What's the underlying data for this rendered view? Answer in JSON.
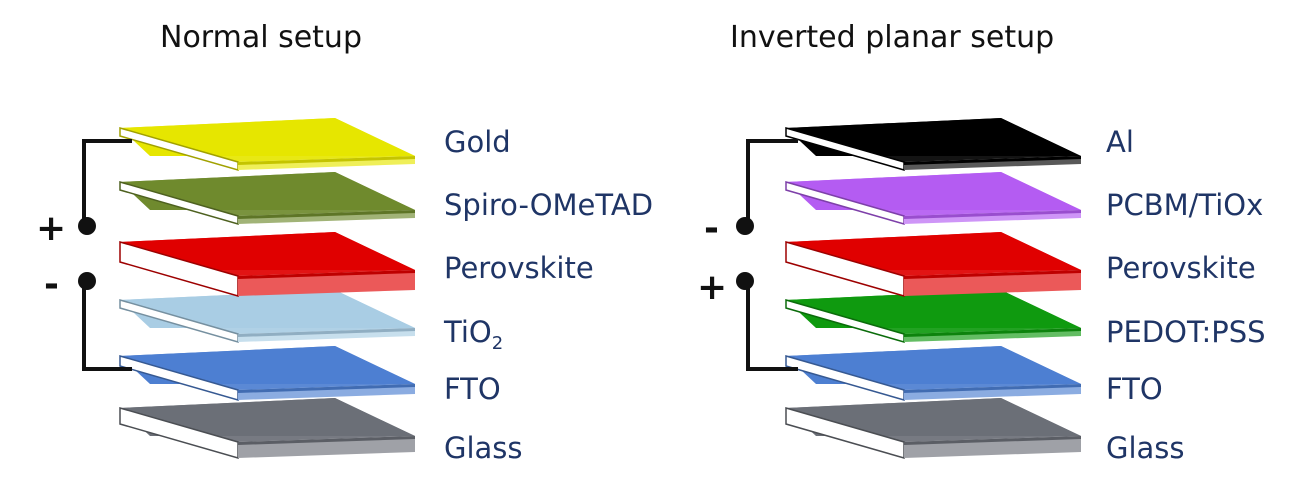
{
  "panels": [
    {
      "title": "Normal setup",
      "layers": [
        {
          "label": "Gold",
          "color": "#e6e600"
        },
        {
          "label": "Spiro-OMeTAD",
          "color": "#6f8a2e"
        },
        {
          "label": "Perovskite",
          "color": "#e00000"
        },
        {
          "label": "TiO",
          "subscript": "2",
          "color": "#a9cde4"
        },
        {
          "label": "FTO",
          "color": "#4d7fd1"
        },
        {
          "label": "Glass",
          "color": "#6b6f77"
        }
      ],
      "terminal_top": "+",
      "terminal_bottom": "-"
    },
    {
      "title": "Inverted planar setup",
      "layers": [
        {
          "label": "Al",
          "color": "#000000"
        },
        {
          "label": "PCBM/TiOx",
          "color": "#b45cf2"
        },
        {
          "label": "Perovskite",
          "color": "#e00000"
        },
        {
          "label": "PEDOT:PSS",
          "color": "#0f9a0f"
        },
        {
          "label": "FTO",
          "color": "#4d7fd1"
        },
        {
          "label": "Glass",
          "color": "#6b6f77"
        }
      ],
      "terminal_top": "-",
      "terminal_bottom": "+"
    }
  ]
}
